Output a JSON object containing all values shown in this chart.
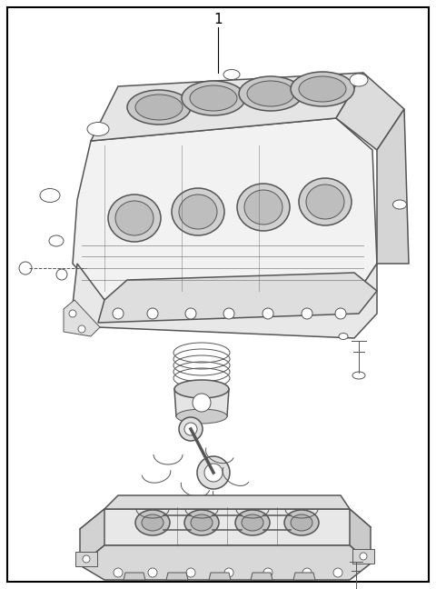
{
  "label_1": "1",
  "bg_color": "#ffffff",
  "border_color": "#000000",
  "line_color": "#555555",
  "fig_width": 4.8,
  "fig_height": 6.48,
  "lw_thin": 0.7,
  "lw_med": 1.1,
  "lw_thick": 1.5
}
